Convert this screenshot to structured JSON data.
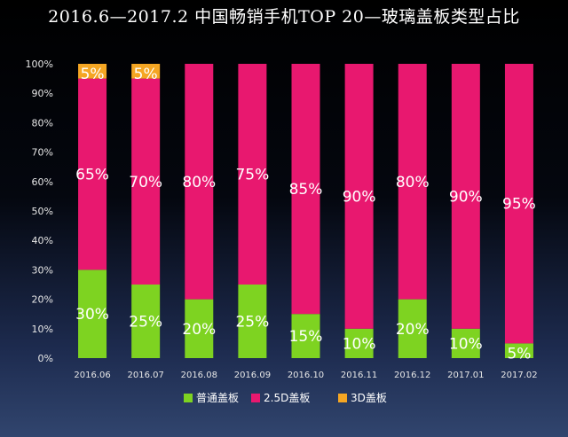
{
  "chart_data": {
    "type": "bar",
    "stacked": true,
    "title": "2016.6—2017.2 中国畅销手机TOP 20—玻璃盖板类型占比",
    "categories": [
      "2016.06",
      "2016.07",
      "2016.08",
      "2016.09",
      "2016.10",
      "2016.11",
      "2016.12",
      "2017.01",
      "2017.02"
    ],
    "series": [
      {
        "name": "普通盖板",
        "color": "#7ed321",
        "values": [
          30,
          25,
          20,
          25,
          15,
          10,
          20,
          10,
          5
        ]
      },
      {
        "name": "2.5D盖板",
        "color": "#e8186f",
        "values": [
          65,
          70,
          80,
          75,
          85,
          90,
          80,
          90,
          95
        ]
      },
      {
        "name": "3D盖板",
        "color": "#f5a623",
        "values": [
          5,
          5,
          0,
          0,
          0,
          0,
          0,
          0,
          0
        ]
      }
    ],
    "yticks": [
      "0%",
      "10%",
      "20%",
      "30%",
      "40%",
      "50%",
      "60%",
      "70%",
      "80%",
      "90%",
      "100%"
    ],
    "ylim": [
      0,
      100
    ],
    "xlabel": "",
    "ylabel": "",
    "legend": "bottom",
    "grid": false
  }
}
